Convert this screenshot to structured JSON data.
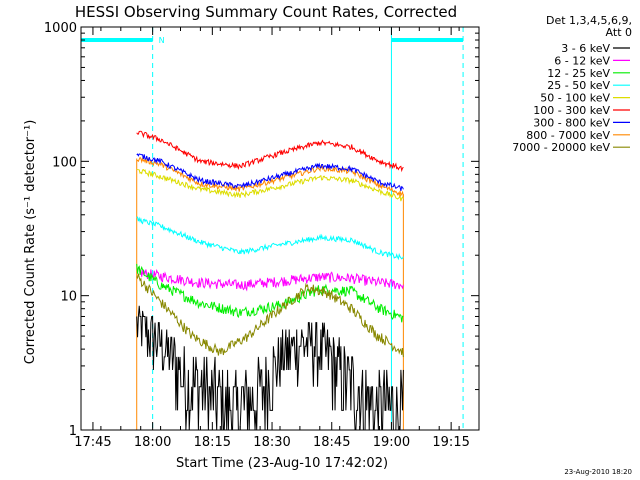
{
  "chart_data": {
    "type": "line",
    "title": "HESSI Observing Summary Count Rates, Corrected",
    "xlabel": "Start Time (23-Aug-10 17:42:02)",
    "ylabel": "Corrected Count Rate (s⁻¹ detector⁻¹)",
    "y_scale": "log",
    "ylim": [
      1,
      1000
    ],
    "xlim_minutes_after_1742": [
      0,
      100
    ],
    "x_ticks": [
      {
        "label": "17:45",
        "t": 3
      },
      {
        "label": "18:00",
        "t": 18
      },
      {
        "label": "18:15",
        "t": 33
      },
      {
        "label": "18:30",
        "t": 48
      },
      {
        "label": "18:45",
        "t": 63
      },
      {
        "label": "19:00",
        "t": 78
      },
      {
        "label": "19:15",
        "t": 93
      }
    ],
    "y_ticks": [
      {
        "label": "1",
        "v": 1
      },
      {
        "label": "10",
        "v": 10
      },
      {
        "label": "100",
        "v": 100
      },
      {
        "label": "1000",
        "v": 1000
      }
    ],
    "legend_header": [
      "Det 1,3,4,5,6,9,",
      "Att 0"
    ],
    "legend_position": "right",
    "night_bars": [
      {
        "from": 0,
        "to": 18,
        "v": 800
      },
      {
        "from": 78,
        "to": 96,
        "v": 800
      }
    ],
    "saa_lines": [
      18,
      96
    ],
    "n_marker": {
      "label": "N",
      "t": 18
    },
    "night_edges": [
      78
    ],
    "data_start": 14,
    "data_end": 81,
    "series": [
      {
        "name": "3 - 6 keV",
        "color": "#000000",
        "values_at": [
          [
            14,
            6.2
          ],
          [
            19,
            4.8
          ],
          [
            25,
            2.8
          ],
          [
            31,
            2.0
          ],
          [
            38,
            1.4
          ],
          [
            44,
            1.7
          ],
          [
            50,
            3.5
          ],
          [
            55,
            4.6
          ],
          [
            60,
            4.2
          ],
          [
            65,
            2.9
          ],
          [
            70,
            1.8
          ],
          [
            75,
            1.4
          ],
          [
            81,
            1.3
          ]
        ]
      },
      {
        "name": "6 - 12 keV",
        "color": "#ff00ff",
        "values_at": [
          [
            14,
            15
          ],
          [
            20,
            14
          ],
          [
            30,
            12.5
          ],
          [
            40,
            12
          ],
          [
            50,
            12.8
          ],
          [
            60,
            13.8
          ],
          [
            68,
            13.5
          ],
          [
            75,
            12.5
          ],
          [
            81,
            12
          ]
        ]
      },
      {
        "name": "12 - 25 keV",
        "color": "#00ee00",
        "values_at": [
          [
            14,
            16
          ],
          [
            20,
            12
          ],
          [
            30,
            8.8
          ],
          [
            40,
            7.5
          ],
          [
            50,
            8.5
          ],
          [
            60,
            11.2
          ],
          [
            68,
            10.8
          ],
          [
            75,
            8
          ],
          [
            81,
            6.8
          ]
        ]
      },
      {
        "name": "25 - 50 keV",
        "color": "#00ffff",
        "values_at": [
          [
            14,
            37
          ],
          [
            20,
            33
          ],
          [
            30,
            25
          ],
          [
            40,
            21
          ],
          [
            50,
            24
          ],
          [
            60,
            27
          ],
          [
            68,
            26
          ],
          [
            75,
            21
          ],
          [
            81,
            19
          ]
        ]
      },
      {
        "name": "50 - 100 keV",
        "color": "#dddd00",
        "values_at": [
          [
            14,
            86
          ],
          [
            20,
            77
          ],
          [
            30,
            62
          ],
          [
            40,
            56
          ],
          [
            50,
            65
          ],
          [
            60,
            76
          ],
          [
            68,
            72
          ],
          [
            75,
            60
          ],
          [
            81,
            52
          ]
        ]
      },
      {
        "name": "100 - 300 keV",
        "color": "#ff0000",
        "values_at": [
          [
            14,
            165
          ],
          [
            20,
            145
          ],
          [
            30,
            100
          ],
          [
            40,
            92
          ],
          [
            50,
            115
          ],
          [
            60,
            138
          ],
          [
            68,
            128
          ],
          [
            75,
            100
          ],
          [
            81,
            88
          ]
        ]
      },
      {
        "name": "300 - 800 keV",
        "color": "#0000ff",
        "values_at": [
          [
            14,
            112
          ],
          [
            20,
            100
          ],
          [
            30,
            72
          ],
          [
            40,
            65
          ],
          [
            50,
            78
          ],
          [
            60,
            93
          ],
          [
            68,
            88
          ],
          [
            75,
            70
          ],
          [
            81,
            62
          ]
        ]
      },
      {
        "name": "800 - 7000 keV",
        "color": "#ff8800",
        "values_at": [
          [
            14,
            105
          ],
          [
            20,
            95
          ],
          [
            30,
            68
          ],
          [
            40,
            62
          ],
          [
            50,
            74
          ],
          [
            60,
            89
          ],
          [
            68,
            84
          ],
          [
            75,
            66
          ],
          [
            81,
            57
          ]
        ]
      },
      {
        "name": "7000 - 20000 keV",
        "color": "#888800",
        "values_at": [
          [
            14,
            14
          ],
          [
            20,
            9
          ],
          [
            28,
            5
          ],
          [
            35,
            3.8
          ],
          [
            42,
            5
          ],
          [
            50,
            8
          ],
          [
            57,
            11.5
          ],
          [
            62,
            10.5
          ],
          [
            68,
            8
          ],
          [
            74,
            5.2
          ],
          [
            81,
            3.8
          ]
        ]
      }
    ]
  },
  "footer_timestamp": "23-Aug-2010 18:20"
}
